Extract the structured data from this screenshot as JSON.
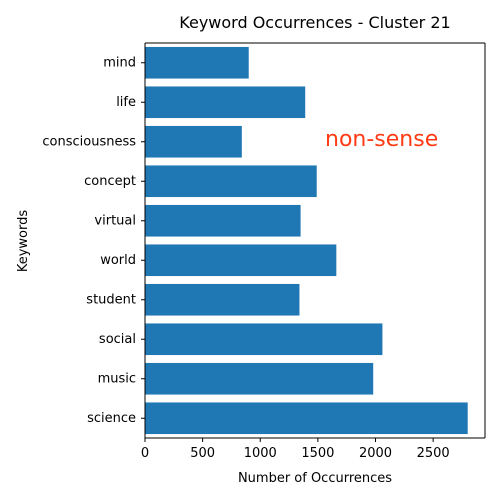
{
  "chart_data": {
    "type": "bar",
    "orientation": "horizontal",
    "title": "Keyword Occurrences - Cluster 21",
    "xlabel": "Number of Occurrences",
    "ylabel": "Keywords",
    "categories": [
      "science",
      "music",
      "social",
      "student",
      "world",
      "virtual",
      "concept",
      "consciousness",
      "life",
      "mind"
    ],
    "values": [
      2800,
      1980,
      2060,
      1340,
      1660,
      1350,
      1490,
      840,
      1390,
      900
    ],
    "xlim": [
      0,
      2950
    ],
    "xticks": [
      0,
      500,
      1000,
      1500,
      2000,
      2500
    ],
    "grid": false,
    "bar_color": "#1f77b4",
    "annotation": {
      "text": "non-sense",
      "color": "#ff3b14"
    }
  }
}
